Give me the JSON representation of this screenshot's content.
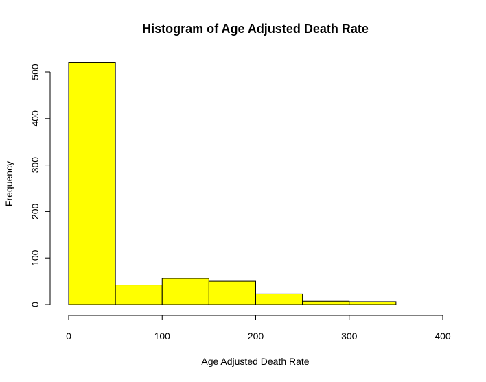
{
  "chart_data": {
    "type": "bar",
    "title": "Histogram of Age Adjusted Death Rate",
    "xlabel": "Age Adjusted Death Rate",
    "ylabel": "Frequency",
    "bins": [
      {
        "from": 0,
        "to": 50,
        "count": 520
      },
      {
        "from": 50,
        "to": 100,
        "count": 42
      },
      {
        "from": 100,
        "to": 150,
        "count": 56
      },
      {
        "from": 150,
        "to": 200,
        "count": 50
      },
      {
        "from": 200,
        "to": 250,
        "count": 23
      },
      {
        "from": 250,
        "to": 300,
        "count": 7
      },
      {
        "from": 300,
        "to": 350,
        "count": 6
      },
      {
        "from": 350,
        "to": 400,
        "count": 0
      }
    ],
    "xlim": [
      0,
      400
    ],
    "ylim": [
      0,
      520
    ],
    "x_ticks": [
      "0",
      "100",
      "200",
      "300",
      "400"
    ],
    "y_ticks": [
      "0",
      "100",
      "200",
      "300",
      "400",
      "500"
    ],
    "bar_color": "#FFFF00",
    "grid": false,
    "legend": "none"
  }
}
